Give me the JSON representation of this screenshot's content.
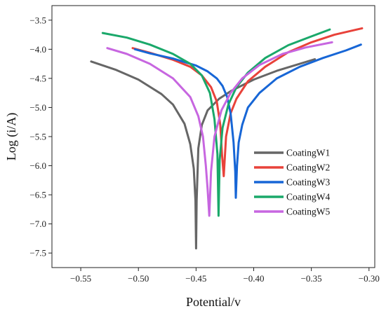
{
  "chart_data": {
    "type": "line",
    "title": "",
    "xlabel": "Potential/v",
    "ylabel": "Log (i/A)",
    "xlim": [
      -0.575,
      -0.295
    ],
    "ylim": [
      -7.75,
      -3.25
    ],
    "xticks": [
      -0.55,
      -0.5,
      -0.45,
      -0.4,
      -0.35,
      -0.3
    ],
    "yticks": [
      -3.5,
      -4.0,
      -4.5,
      -5.0,
      -5.5,
      -6.0,
      -6.5,
      -7.0,
      -7.5
    ],
    "xtick_labels": [
      "−0.55",
      "−0.50",
      "−0.45",
      "−0.40",
      "−0.35",
      "−0.30"
    ],
    "ytick_labels": [
      "−3.5",
      "−4.0",
      "−4.5",
      "−5.0",
      "−5.5",
      "−6.0",
      "−6.5",
      "−7.0",
      "−7.5"
    ],
    "grid": false,
    "legend_position": "center-right",
    "series": [
      {
        "name": "CoatingW1",
        "color": "#666666",
        "x": [
          -0.541,
          -0.52,
          -0.5,
          -0.48,
          -0.47,
          -0.46,
          -0.455,
          -0.452,
          -0.4505,
          -0.45,
          -0.4495,
          -0.448,
          -0.445,
          -0.44,
          -0.43,
          -0.42,
          -0.4,
          -0.38,
          -0.36,
          -0.347
        ],
        "y": [
          -4.21,
          -4.35,
          -4.52,
          -4.77,
          -4.95,
          -5.28,
          -5.63,
          -6.05,
          -6.6,
          -7.42,
          -6.6,
          -5.7,
          -5.3,
          -5.05,
          -4.85,
          -4.72,
          -4.52,
          -4.37,
          -4.25,
          -4.17
        ]
      },
      {
        "name": "CoatingW2",
        "color": "#e8423a",
        "x": [
          -0.505,
          -0.49,
          -0.47,
          -0.455,
          -0.445,
          -0.437,
          -0.432,
          -0.429,
          -0.4275,
          -0.426,
          -0.424,
          -0.42,
          -0.415,
          -0.405,
          -0.39,
          -0.37,
          -0.35,
          -0.33,
          -0.306
        ],
        "y": [
          -3.98,
          -4.06,
          -4.18,
          -4.3,
          -4.45,
          -4.65,
          -4.9,
          -5.3,
          -5.8,
          -6.18,
          -5.5,
          -5.1,
          -4.85,
          -4.55,
          -4.3,
          -4.05,
          -3.88,
          -3.75,
          -3.64
        ]
      },
      {
        "name": "CoatingW3",
        "color": "#1766d6",
        "x": [
          -0.503,
          -0.49,
          -0.47,
          -0.45,
          -0.44,
          -0.432,
          -0.427,
          -0.423,
          -0.42,
          -0.4175,
          -0.416,
          -0.4155,
          -0.4145,
          -0.413,
          -0.41,
          -0.405,
          -0.395,
          -0.38,
          -0.36,
          -0.34,
          -0.32,
          -0.307
        ],
        "y": [
          -4.0,
          -4.07,
          -4.16,
          -4.28,
          -4.38,
          -4.5,
          -4.63,
          -4.82,
          -5.1,
          -5.6,
          -6.1,
          -6.55,
          -6.0,
          -5.6,
          -5.3,
          -5.0,
          -4.75,
          -4.5,
          -4.3,
          -4.15,
          -4.02,
          -3.92
        ]
      },
      {
        "name": "CoatingW4",
        "color": "#1aa86a",
        "x": [
          -0.531,
          -0.51,
          -0.49,
          -0.47,
          -0.455,
          -0.445,
          -0.438,
          -0.434,
          -0.4315,
          -0.4305,
          -0.4295,
          -0.427,
          -0.422,
          -0.415,
          -0.405,
          -0.39,
          -0.37,
          -0.35,
          -0.334
        ],
        "y": [
          -3.72,
          -3.8,
          -3.92,
          -4.08,
          -4.25,
          -4.45,
          -4.75,
          -5.2,
          -5.8,
          -6.86,
          -5.9,
          -5.35,
          -4.95,
          -4.65,
          -4.4,
          -4.15,
          -3.93,
          -3.78,
          -3.66
        ]
      },
      {
        "name": "CoatingW5",
        "color": "#c766e0",
        "x": [
          -0.527,
          -0.51,
          -0.49,
          -0.47,
          -0.455,
          -0.448,
          -0.444,
          -0.4415,
          -0.44,
          -0.4385,
          -0.437,
          -0.434,
          -0.428,
          -0.42,
          -0.41,
          -0.395,
          -0.375,
          -0.355,
          -0.332
        ],
        "y": [
          -3.98,
          -4.08,
          -4.25,
          -4.5,
          -4.82,
          -5.15,
          -5.5,
          -6.0,
          -6.4,
          -6.86,
          -6.1,
          -5.5,
          -5.05,
          -4.75,
          -4.5,
          -4.27,
          -4.08,
          -3.97,
          -3.88
        ]
      }
    ]
  }
}
